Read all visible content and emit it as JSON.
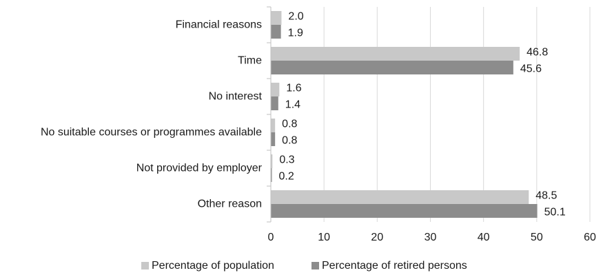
{
  "chart_data": {
    "type": "bar",
    "orientation": "horizontal",
    "categories": [
      "Financial reasons",
      "Time",
      "No interest",
      "No suitable courses or programmes available",
      "Not provided by employer",
      "Other reason"
    ],
    "series": [
      {
        "name": "Percentage of population",
        "color": "#c8c8c8",
        "values": [
          2.0,
          46.8,
          1.6,
          0.8,
          0.3,
          48.5
        ],
        "labels": [
          "2.0",
          "46.8",
          "1.6",
          "0.8",
          "0.3",
          "48.5"
        ]
      },
      {
        "name": "Percentage of retired persons",
        "color": "#8c8c8c",
        "values": [
          1.9,
          45.6,
          1.4,
          0.8,
          0.2,
          50.1
        ],
        "labels": [
          "1.9",
          "45.6",
          "1.4",
          "0.8",
          "0.2",
          "50.1"
        ]
      }
    ],
    "xlim": [
      0,
      60
    ],
    "xticks": [
      0,
      10,
      20,
      30,
      40,
      50,
      60
    ],
    "grid": "vertical",
    "legend": "bottom",
    "title": "",
    "xlabel": "",
    "ylabel": "",
    "colors": {
      "gridline": "#d9d9d9",
      "axis": "#bfbfbf"
    }
  }
}
